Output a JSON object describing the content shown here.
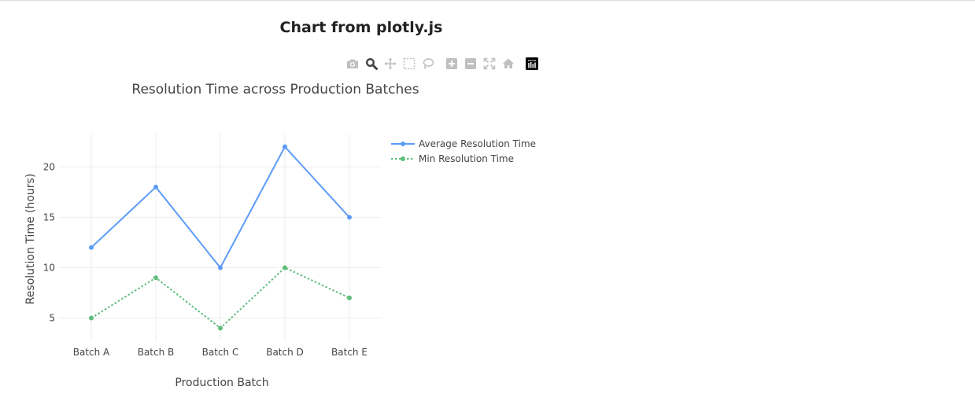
{
  "page": {
    "title": "Chart from plotly.js"
  },
  "modebar": {
    "buttons": [
      {
        "name": "camera-icon"
      },
      {
        "name": "zoom-icon"
      },
      {
        "name": "pan-icon"
      },
      {
        "name": "box-select-icon"
      },
      {
        "name": "lasso-icon"
      },
      {
        "name": "zoom-in-icon"
      },
      {
        "name": "zoom-out-icon"
      },
      {
        "name": "autoscale-icon"
      },
      {
        "name": "reset-axes-icon"
      },
      {
        "name": "plotly-logo-icon"
      }
    ],
    "inactive_color": "#c0c0c0",
    "active_color": "#444444"
  },
  "chart_data": {
    "type": "line",
    "title": "Resolution Time across Production Batches",
    "xlabel": "Production Batch",
    "ylabel": "Resolution Time (hours)",
    "categories": [
      "Batch A",
      "Batch B",
      "Batch C",
      "Batch D",
      "Batch E"
    ],
    "ylim": [
      2.7,
      23.3
    ],
    "yticks": [
      5,
      10,
      15,
      20
    ],
    "grid": true,
    "legend_position": "right",
    "series": [
      {
        "name": "Average Resolution Time",
        "values": [
          12,
          18,
          10,
          22,
          15
        ],
        "color": "#5b9bf8",
        "dash": "solid"
      },
      {
        "name": "Min Resolution Time",
        "values": [
          5,
          9,
          4,
          10,
          7
        ],
        "color": "#5fbd7c",
        "dash": "dot"
      }
    ]
  }
}
